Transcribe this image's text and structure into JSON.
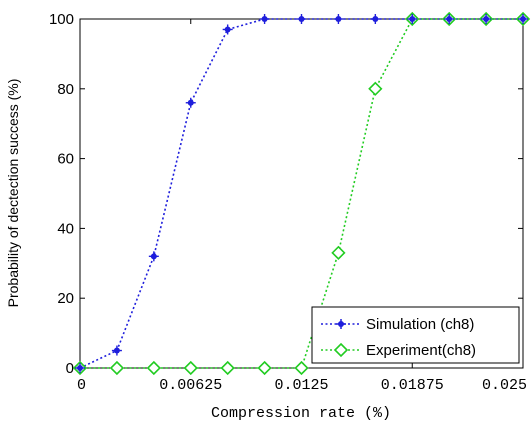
{
  "chart_data": {
    "type": "line",
    "xlabel": "Compression rate (%)",
    "ylabel": "Probability of dectection success (%)",
    "xlim": [
      0,
      0.025
    ],
    "ylim": [
      0,
      100
    ],
    "x_ticks": [
      0,
      0.00625,
      0.0125,
      0.01875,
      0.025
    ],
    "x_tick_labels": [
      "0",
      "0.00625",
      "0.0125",
      "0.01875",
      "0.025"
    ],
    "y_ticks": [
      0,
      20,
      40,
      60,
      80,
      100
    ],
    "y_tick_labels": [
      "0",
      "20",
      "40",
      "60",
      "80",
      "100"
    ],
    "grid": false,
    "legend_position": "bottom-right",
    "x": [
      0,
      0.0020833,
      0.0041667,
      0.00625,
      0.0083333,
      0.0104167,
      0.0125,
      0.0145833,
      0.0166667,
      0.01875,
      0.0208333,
      0.0229167,
      0.025
    ],
    "series": [
      {
        "name": "Simulation (ch8)",
        "color": "#1f1fdc",
        "marker": "dot",
        "line_style": "dotted",
        "values": [
          0,
          5,
          32,
          76,
          97,
          100,
          100,
          100,
          100,
          100,
          100,
          100,
          100
        ]
      },
      {
        "name": "Experiment(ch8)",
        "color": "#22cc22",
        "marker": "diamond",
        "line_style": "dotted",
        "values": [
          0,
          0,
          0,
          0,
          0,
          0,
          0,
          33,
          80,
          100,
          100,
          100,
          100
        ]
      }
    ]
  }
}
